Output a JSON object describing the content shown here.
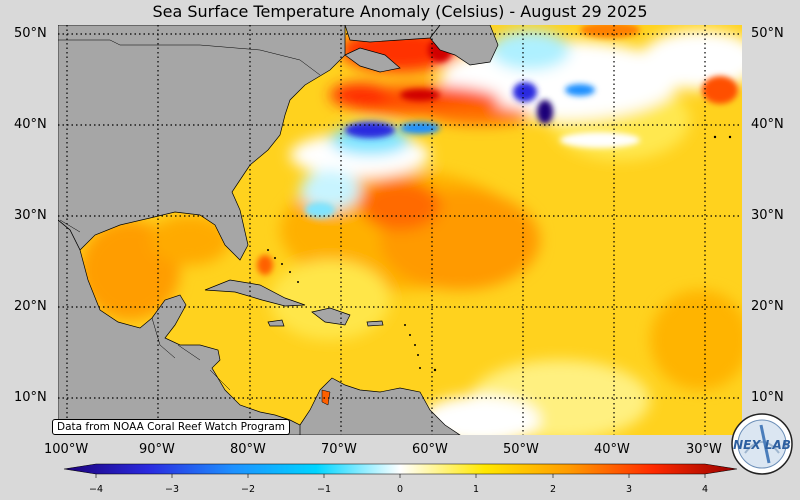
{
  "title": "Sea Surface Temperature Anomaly (Celsius) - August 29 2025",
  "credit": "Data from NOAA Coral Reef Watch Program",
  "lat_labels": [
    "50°N",
    "40°N",
    "30°N",
    "20°N",
    "10°N"
  ],
  "lon_labels": [
    "100°W",
    "90°W",
    "80°W",
    "70°W",
    "60°W",
    "50°W",
    "40°W",
    "30°W"
  ],
  "colorbar": {
    "ticks": [
      "−4",
      "−3",
      "−2",
      "−1",
      "0",
      "1",
      "2",
      "3",
      "4"
    ],
    "colors": [
      "#1c0078",
      "#2a2adf",
      "#1e90ff",
      "#00d5ff",
      "#ffffff",
      "#ffe800",
      "#ff9b00",
      "#ff2a00",
      "#960000"
    ]
  },
  "logo": {
    "text": "NEX LAB",
    "icon": "nexlab-logo"
  },
  "colors": {
    "land": "#a6a6a6",
    "background": "#d9d9d9"
  }
}
